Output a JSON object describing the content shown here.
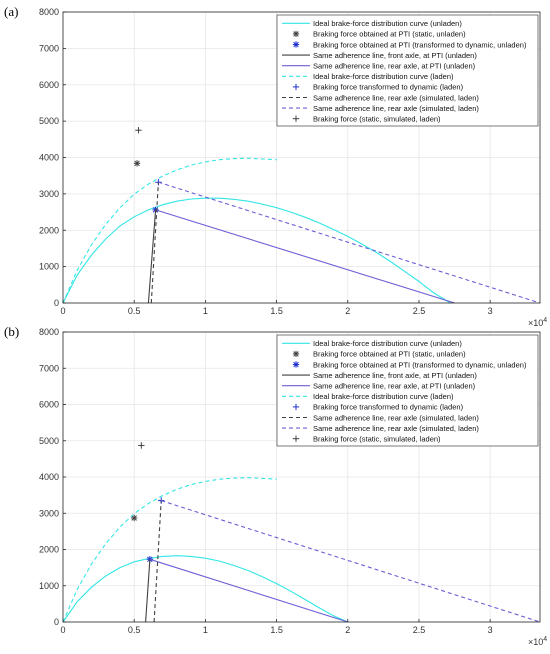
{
  "colors": {
    "cyan": "#33e5e5",
    "blue": "#6b5fd6",
    "dark": "#404040",
    "navy": "#2233cc",
    "grid": "#e6e6e6"
  },
  "chart_data": [
    {
      "panel_label": "(a)",
      "type": "line",
      "xlim": [
        0,
        33500
      ],
      "ylim": [
        0,
        8000
      ],
      "x_ticks": [
        0,
        5000,
        10000,
        15000,
        20000,
        25000,
        30000
      ],
      "x_tick_labels": [
        "0",
        "0.5",
        "1",
        "1.5",
        "2",
        "2.5",
        "3"
      ],
      "x_multiplier": "×10",
      "x_multiplier_exp": "4",
      "y_ticks": [
        0,
        1000,
        2000,
        3000,
        4000,
        5000,
        6000,
        7000,
        8000
      ],
      "grid": true,
      "legend_position": "top-right",
      "series": [
        {
          "name": "Ideal brake-force distribution curve (unladen)",
          "style": "solid",
          "color": "cyan",
          "x": [
            0,
            1000,
            2000,
            3000,
            4000,
            5000,
            6000,
            7000,
            8000,
            9000,
            10000,
            11000,
            12000,
            13000,
            14000,
            15000,
            16000,
            17000,
            18000,
            19000,
            20000,
            21000,
            22000,
            23000,
            24000,
            25000,
            26000,
            27200
          ],
          "y": [
            0,
            770,
            1320,
            1760,
            2120,
            2370,
            2560,
            2700,
            2800,
            2860,
            2880,
            2880,
            2850,
            2800,
            2720,
            2620,
            2500,
            2360,
            2200,
            2020,
            1830,
            1620,
            1390,
            1140,
            870,
            590,
            290,
            0
          ]
        },
        {
          "name": "Braking force obtained at PTI (static, unladen)",
          "marker": "*",
          "color": "dark",
          "x": [
            5200
          ],
          "y": [
            3840
          ]
        },
        {
          "name": "Braking force obtained at PTI (transformed to dynamic, unladen)",
          "marker": "*",
          "color": "navy",
          "x": [
            6500
          ],
          "y": [
            2560
          ]
        },
        {
          "name": "Same adherence line, front axle, at PTI (unladen)",
          "style": "solid",
          "color": "dark",
          "x": [
            6000,
            6500
          ],
          "y": [
            0,
            2560
          ]
        },
        {
          "name": "Same adherence line, rear axle, at PTI (unladen)",
          "style": "solid",
          "color": "blue",
          "x": [
            6500,
            27500
          ],
          "y": [
            2560,
            0
          ]
        },
        {
          "name": "Ideal brake-force distribution curve (laden)",
          "style": "dashed",
          "color": "cyan",
          "x": [
            0,
            1000,
            2000,
            3000,
            4000,
            5000,
            6000,
            7000,
            8000,
            9000,
            10000,
            11000,
            12000,
            13000,
            14000,
            15000
          ],
          "y": [
            0,
            900,
            1600,
            2160,
            2620,
            2990,
            3270,
            3490,
            3660,
            3790,
            3880,
            3940,
            3970,
            3980,
            3960,
            3940
          ]
        },
        {
          "name": "Braking force transformed to dynamic (laden)",
          "marker": "+",
          "color": "navy",
          "x": [
            6700
          ],
          "y": [
            3320
          ]
        },
        {
          "name": "Same adherence line, rear axle (simulated, laden)",
          "style": "dashed",
          "color": "dark",
          "x": [
            6200,
            6700
          ],
          "y": [
            0,
            3320
          ]
        },
        {
          "name": "Same adherence line, rear axle (simulated, laden)",
          "style": "dashed",
          "color": "blue",
          "x": [
            6700,
            33500
          ],
          "y": [
            3320,
            0
          ]
        },
        {
          "name": "Braking force (static, simulated, laden)",
          "marker": "+",
          "color": "dark",
          "x": [
            5300
          ],
          "y": [
            4750
          ]
        }
      ]
    },
    {
      "panel_label": "(b)",
      "type": "line",
      "xlim": [
        0,
        33500
      ],
      "ylim": [
        0,
        8000
      ],
      "x_ticks": [
        0,
        5000,
        10000,
        15000,
        20000,
        25000,
        30000
      ],
      "x_tick_labels": [
        "0",
        "0.5",
        "1",
        "1.5",
        "2",
        "2.5",
        "3"
      ],
      "x_multiplier": "×10",
      "x_multiplier_exp": "4",
      "y_ticks": [
        0,
        1000,
        2000,
        3000,
        4000,
        5000,
        6000,
        7000,
        8000
      ],
      "grid": true,
      "legend_position": "top-right",
      "series": [
        {
          "name": "Ideal brake-force distribution curve (unladen)",
          "style": "solid",
          "color": "cyan",
          "x": [
            0,
            1000,
            2000,
            3000,
            4000,
            5000,
            6000,
            7000,
            8000,
            9000,
            10000,
            11000,
            12000,
            13000,
            14000,
            15000,
            16000,
            17000,
            18000,
            19000,
            20000
          ],
          "y": [
            0,
            560,
            960,
            1270,
            1500,
            1660,
            1750,
            1810,
            1830,
            1810,
            1760,
            1680,
            1560,
            1420,
            1250,
            1060,
            850,
            620,
            390,
            170,
            0
          ]
        },
        {
          "name": "Braking force obtained at PTI (static, unladen)",
          "marker": "*",
          "color": "dark",
          "x": [
            5000
          ],
          "y": [
            2870
          ]
        },
        {
          "name": "Braking force obtained at PTI (transformed to dynamic, unladen)",
          "marker": "*",
          "color": "navy",
          "x": [
            6100
          ],
          "y": [
            1730
          ]
        },
        {
          "name": "Same adherence line, front axle, at PTI (unladen)",
          "style": "solid",
          "color": "dark",
          "x": [
            5800,
            6100
          ],
          "y": [
            0,
            1730
          ]
        },
        {
          "name": "Same adherence line, rear axle, at PTI (unladen)",
          "style": "solid",
          "color": "blue",
          "x": [
            6100,
            20000
          ],
          "y": [
            1730,
            0
          ]
        },
        {
          "name": "Ideal brake-force distribution curve (laden)",
          "style": "dashed",
          "color": "cyan",
          "x": [
            0,
            1000,
            2000,
            3000,
            4000,
            5000,
            6000,
            7000,
            8000,
            9000,
            10000,
            11000,
            12000,
            13000,
            14000,
            15000
          ],
          "y": [
            0,
            900,
            1600,
            2160,
            2620,
            2990,
            3270,
            3490,
            3660,
            3790,
            3880,
            3940,
            3970,
            3980,
            3960,
            3940
          ]
        },
        {
          "name": "Braking force transformed to dynamic (laden)",
          "marker": "+",
          "color": "navy",
          "x": [
            6900
          ],
          "y": [
            3350
          ]
        },
        {
          "name": "Same adherence line, rear axle (simulated, laden)",
          "style": "dashed",
          "color": "dark",
          "x": [
            6400,
            6900
          ],
          "y": [
            0,
            3350
          ]
        },
        {
          "name": "Same adherence line, rear axle (simulated, laden)",
          "style": "dashed",
          "color": "blue",
          "x": [
            6900,
            33500
          ],
          "y": [
            3350,
            0
          ]
        },
        {
          "name": "Braking force (static, simulated, laden)",
          "marker": "+",
          "color": "dark",
          "x": [
            5500
          ],
          "y": [
            4870
          ]
        }
      ]
    }
  ]
}
